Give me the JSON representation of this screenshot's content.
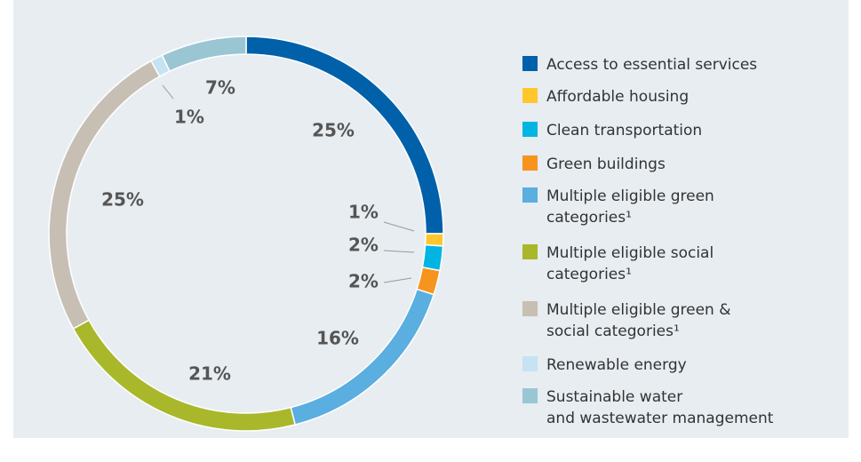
{
  "chart_data": {
    "type": "donut",
    "categories": [
      "Access to essential services",
      "Affordable housing",
      "Clean transportation",
      "Green buildings",
      "Multiple eligible green\ncategories¹",
      "Multiple eligible social\ncategories¹",
      "Multiple eligible green &\nsocial categories¹",
      "Renewable energy",
      "Sustainable water\nand wastewater management"
    ],
    "values": [
      25,
      1,
      2,
      2,
      16,
      21,
      25,
      1,
      7
    ],
    "value_labels": [
      "25%",
      "1%",
      "2%",
      "2%",
      "16%",
      "21%",
      "25%",
      "1%",
      "7%"
    ],
    "colors": [
      "#0061aa",
      "#ffc72c",
      "#00b5e2",
      "#f7941d",
      "#5aaee0",
      "#a8b82a",
      "#c8bfb4",
      "#c5e3f3",
      "#9ac6d4"
    ],
    "legend": "right"
  }
}
